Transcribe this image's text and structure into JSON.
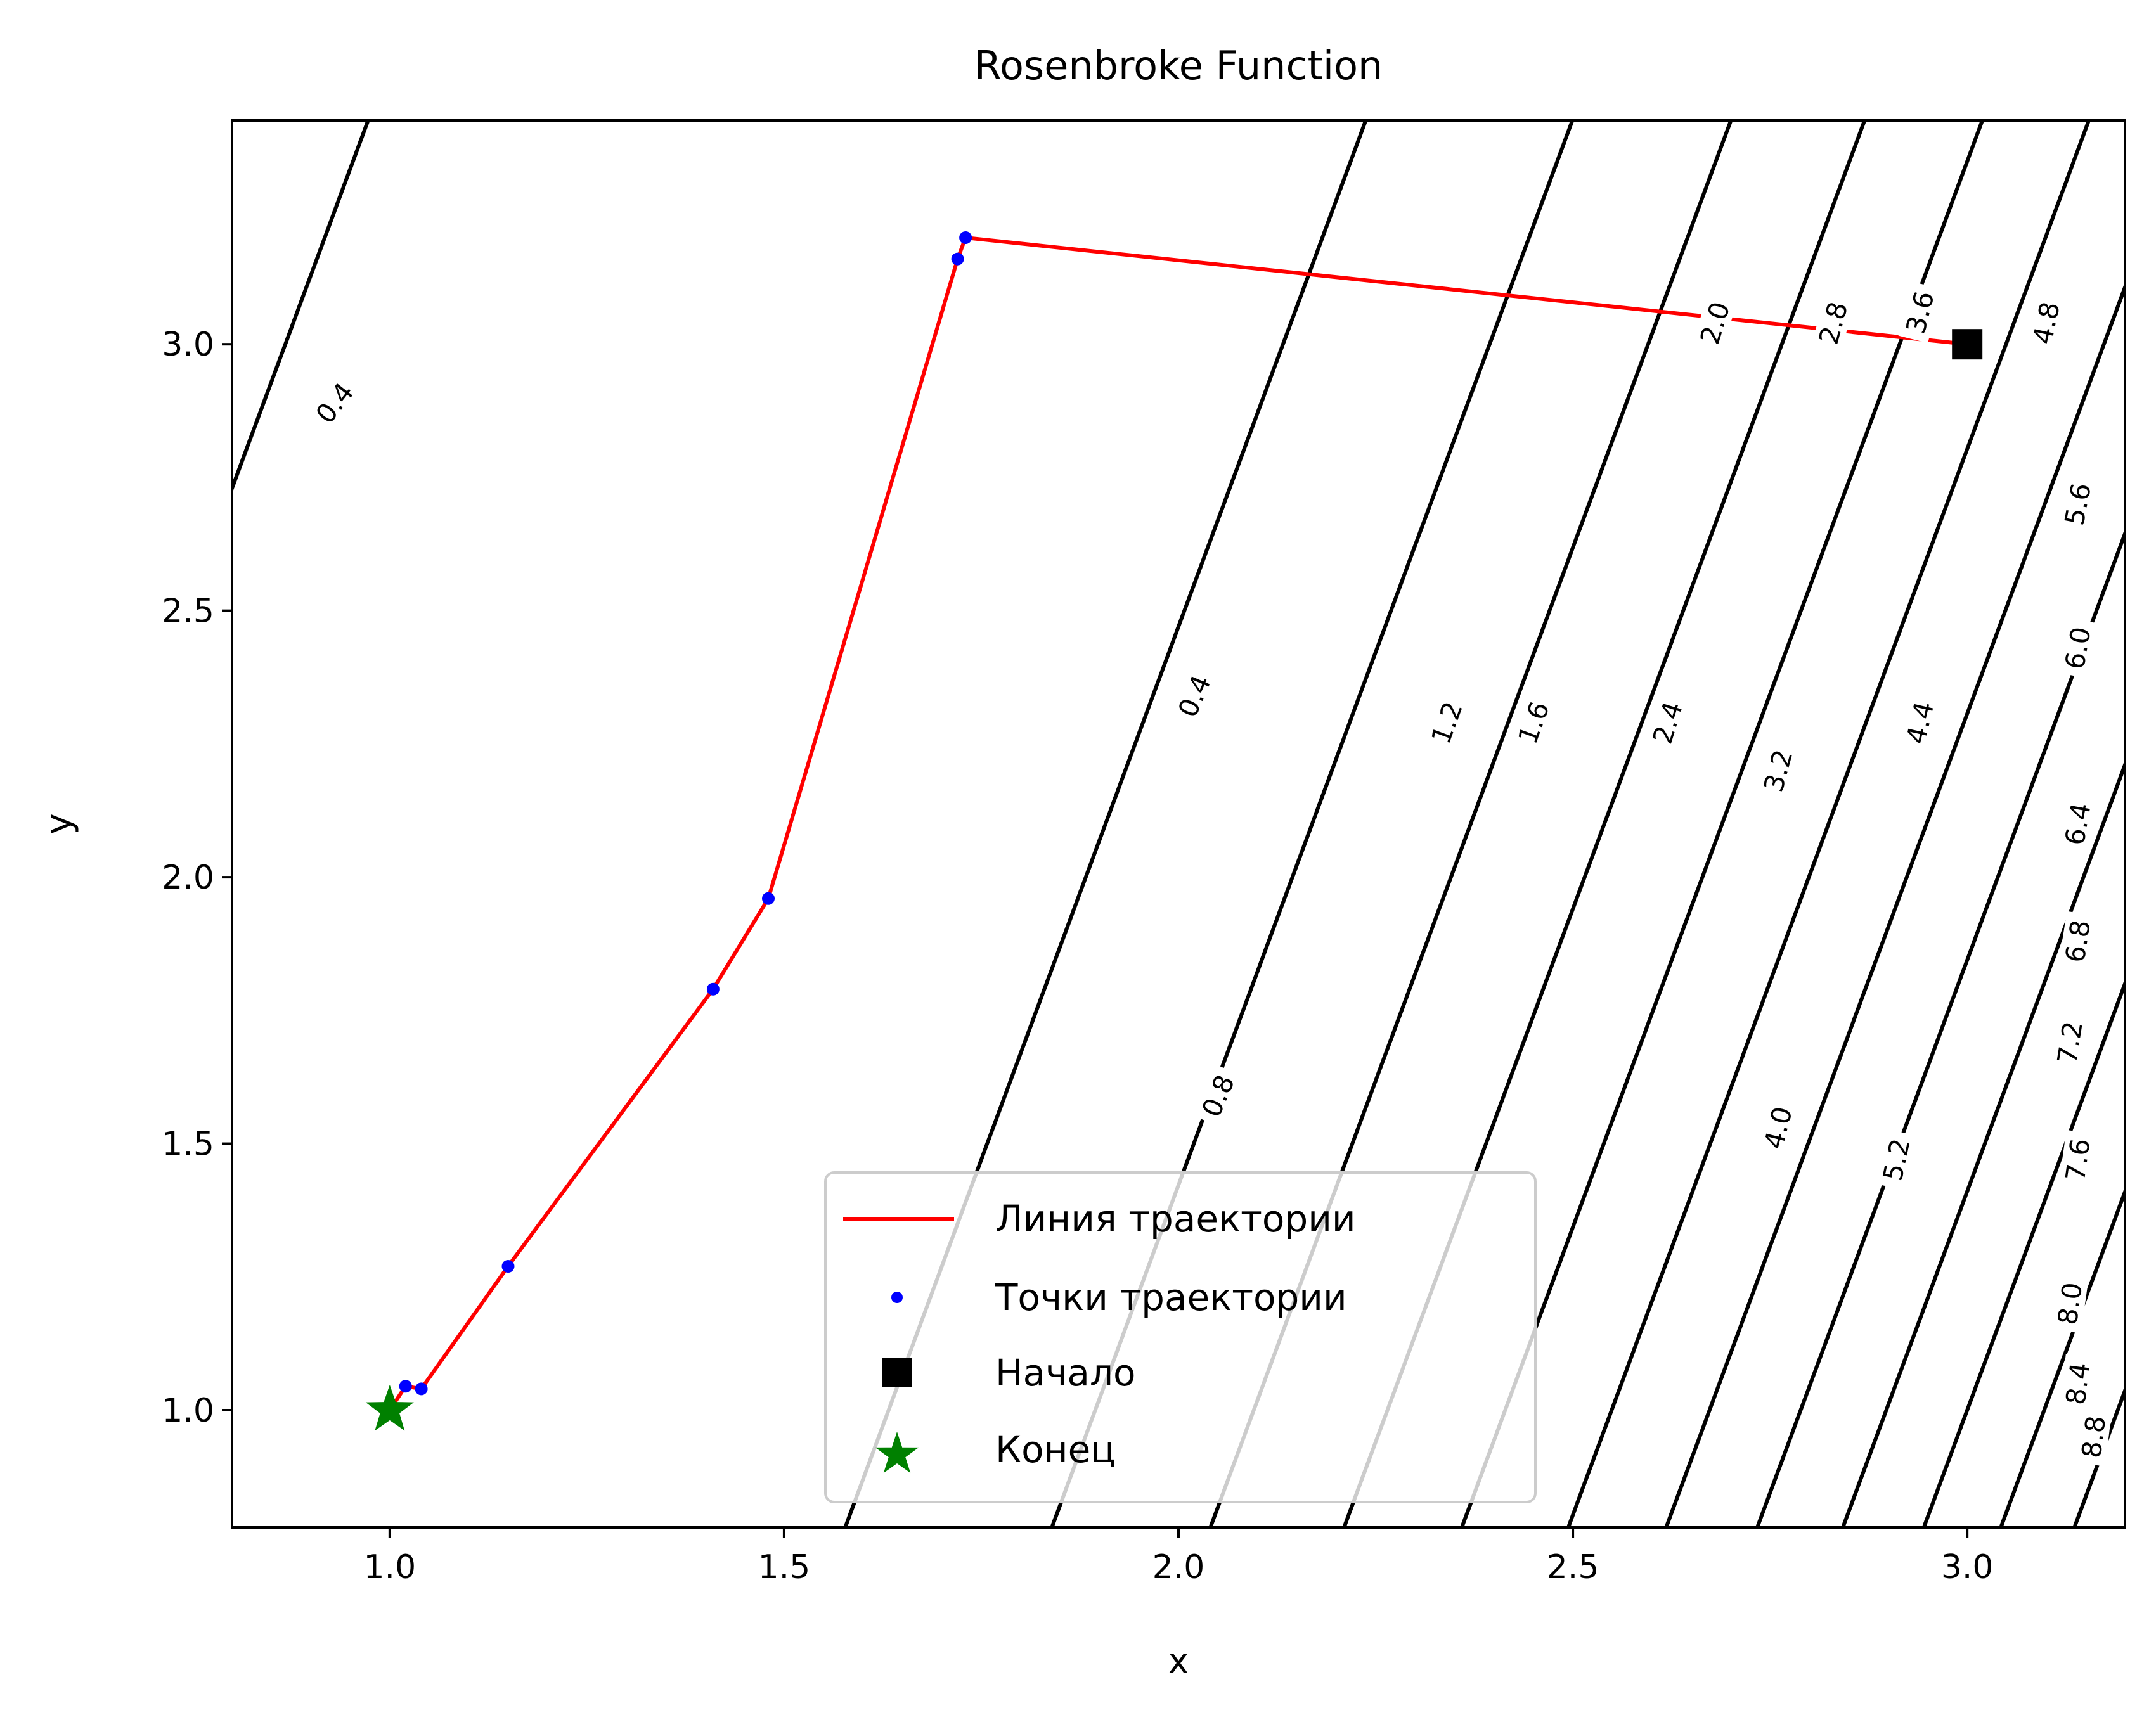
{
  "chart_data": {
    "type": "contour",
    "title": "Rosenbroke Function",
    "xlabel": "x",
    "ylabel": "y",
    "xlim": [
      0.8,
      3.2
    ],
    "ylim": [
      0.78,
      3.42
    ],
    "xticks": [
      "1.0",
      "1.5",
      "2.0",
      "2.5",
      "3.0"
    ],
    "yticks": [
      "1.0",
      "1.5",
      "2.0",
      "2.5",
      "3.0"
    ],
    "grid": false,
    "legend_position": "lower-center",
    "contour_levels": [
      "0.4",
      "0.8",
      "1.2",
      "1.6",
      "2.0",
      "2.4",
      "2.8",
      "3.2",
      "3.6",
      "4.0",
      "4.4",
      "4.8",
      "5.2",
      "5.6",
      "6.0",
      "6.4",
      "6.8",
      "7.2",
      "7.6",
      "8.0",
      "8.4",
      "8.8"
    ],
    "contour_labels": [
      {
        "text": "0.4",
        "x": 0.93,
        "y": 2.89,
        "angle": -52
      },
      {
        "text": "0.4",
        "x": 2.02,
        "y": 2.34,
        "angle": -67
      },
      {
        "text": "0.8",
        "x": 2.05,
        "y": 1.59,
        "angle": -67
      },
      {
        "text": "1.2",
        "x": 2.34,
        "y": 2.29,
        "angle": -70
      },
      {
        "text": "1.6",
        "x": 2.45,
        "y": 2.29,
        "angle": -70
      },
      {
        "text": "2.0",
        "x": 2.68,
        "y": 3.04,
        "angle": -73
      },
      {
        "text": "2.4",
        "x": 2.62,
        "y": 2.29,
        "angle": -73
      },
      {
        "text": "2.8",
        "x": 2.83,
        "y": 3.04,
        "angle": -75
      },
      {
        "text": "3.2",
        "x": 2.76,
        "y": 2.2,
        "angle": -75
      },
      {
        "text": "3.6",
        "x": 2.94,
        "y": 3.06,
        "angle": -76
      },
      {
        "text": "4.0",
        "x": 2.76,
        "y": 1.53,
        "angle": -76
      },
      {
        "text": "4.4",
        "x": 2.94,
        "y": 2.29,
        "angle": -77
      },
      {
        "text": "4.8",
        "x": 3.1,
        "y": 3.04,
        "angle": -78
      },
      {
        "text": "5.2",
        "x": 2.91,
        "y": 1.47,
        "angle": -78
      },
      {
        "text": "5.6",
        "x": 3.14,
        "y": 2.7,
        "angle": -79
      },
      {
        "text": "6.0",
        "x": 3.14,
        "y": 2.43,
        "angle": -80
      },
      {
        "text": "6.4",
        "x": 3.14,
        "y": 2.1,
        "angle": -80
      },
      {
        "text": "6.8",
        "x": 3.14,
        "y": 1.88,
        "angle": -81
      },
      {
        "text": "7.2",
        "x": 3.13,
        "y": 1.69,
        "angle": -81
      },
      {
        "text": "7.6",
        "x": 3.14,
        "y": 1.47,
        "angle": -82
      },
      {
        "text": "8.0",
        "x": 3.13,
        "y": 1.2,
        "angle": -82
      },
      {
        "text": "8.4",
        "x": 3.14,
        "y": 1.05,
        "angle": -83
      },
      {
        "text": "8.8",
        "x": 3.16,
        "y": 0.95,
        "angle": -83
      }
    ],
    "series": [
      {
        "name": "Линия траектории",
        "type": "line",
        "color": "#ff0000",
        "x": [
          3.0,
          1.73,
          1.72,
          1.48,
          1.41,
          1.15,
          1.04,
          1.02,
          1.0
        ],
        "y": [
          3.0,
          3.2,
          3.16,
          1.96,
          1.79,
          1.27,
          1.04,
          1.045,
          1.0
        ]
      },
      {
        "name": "Точки траектории",
        "type": "scatter",
        "color": "#0000ff",
        "x": [
          3.0,
          1.73,
          1.72,
          1.48,
          1.41,
          1.15,
          1.04,
          1.02,
          1.0
        ],
        "y": [
          3.0,
          3.2,
          3.16,
          1.96,
          1.79,
          1.27,
          1.04,
          1.045,
          1.0
        ]
      },
      {
        "name": "Начало",
        "type": "marker-square",
        "color": "#000000",
        "x": [
          3.0
        ],
        "y": [
          3.0
        ]
      },
      {
        "name": "Конец",
        "type": "marker-star",
        "color": "#008000",
        "x": [
          1.0
        ],
        "y": [
          1.0
        ]
      }
    ]
  }
}
